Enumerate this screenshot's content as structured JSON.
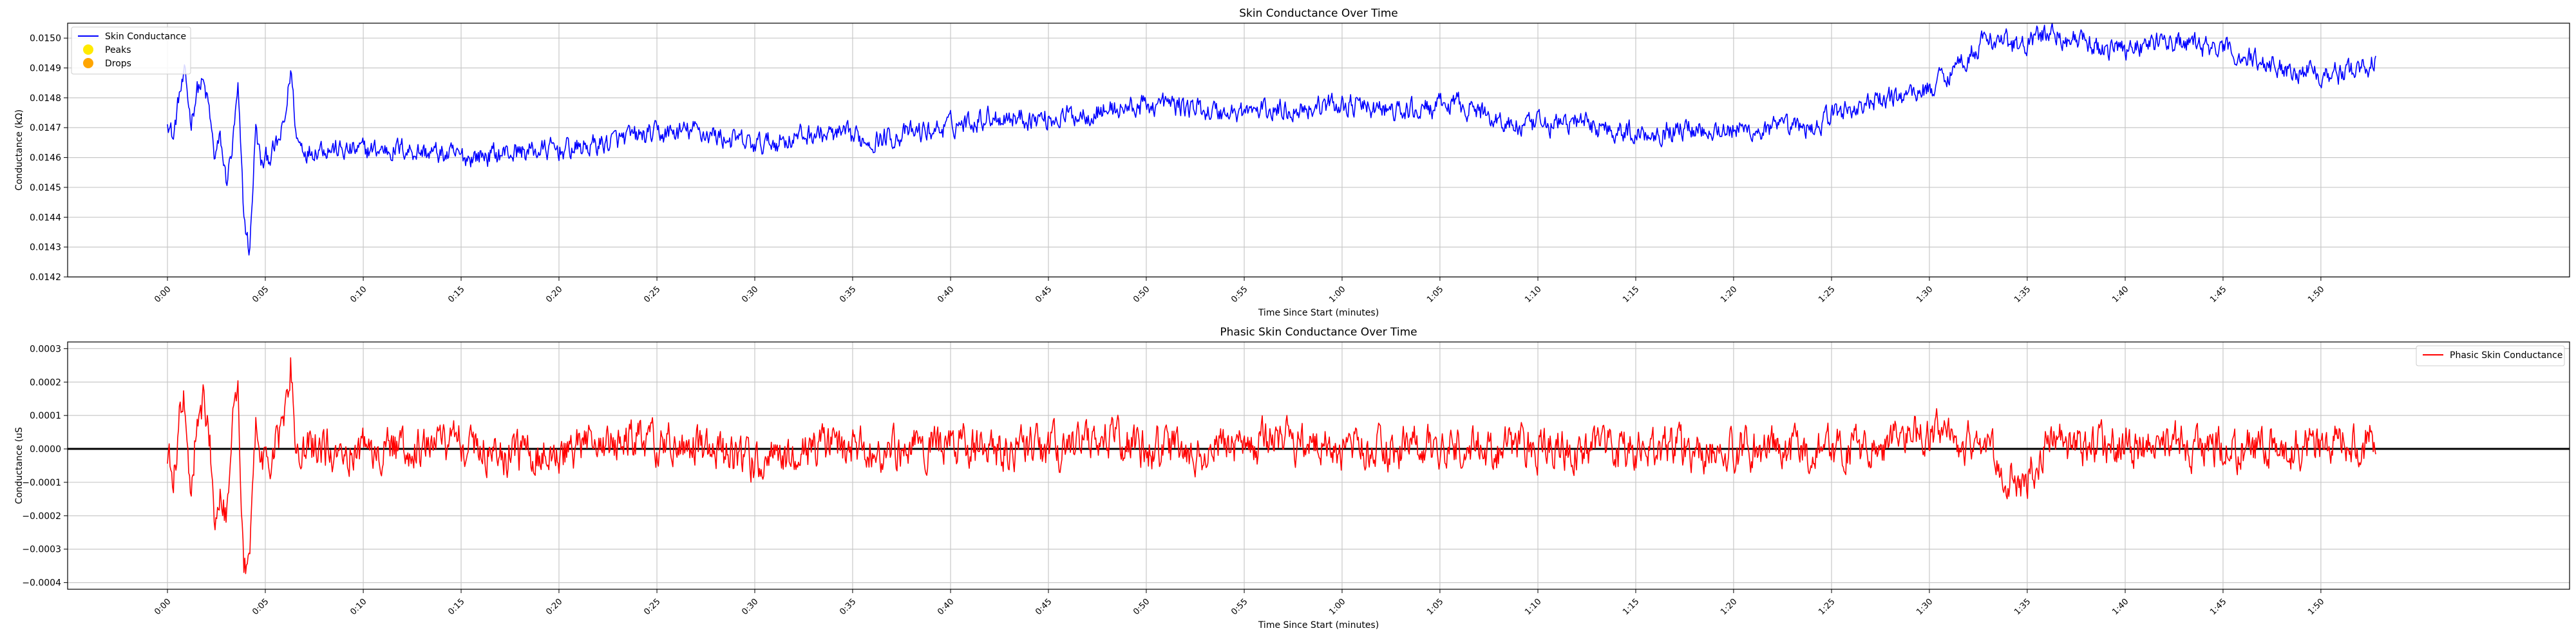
{
  "chart_data": [
    {
      "type": "line",
      "title": "Skin Conductance Over Time",
      "xlabel": "Time Since Start (minutes)",
      "ylabel": "Conductance (kΩ)",
      "xlim": [
        -0.085,
        2.045
      ],
      "ylim": [
        0.0142,
        0.01505
      ],
      "x_ticks": [
        0,
        0.0833,
        0.1667,
        0.25,
        0.3333,
        0.4167,
        0.5,
        0.5833,
        0.6667,
        0.75,
        0.8333,
        0.9167,
        1.0,
        1.0833,
        1.1667,
        1.25,
        1.3333,
        1.4167,
        1.5,
        1.5833,
        1.6667,
        1.75,
        1.8333
      ],
      "x_tick_labels": [
        "0:00",
        "0:05",
        "0:10",
        "0:15",
        "0:20",
        "0:25",
        "0:30",
        "0:35",
        "0:40",
        "0:45",
        "0:50",
        "0:55",
        "1:00",
        "1:05",
        "1:10",
        "1:15",
        "1:20",
        "1:25",
        "1:30",
        "1:35",
        "1:40",
        "1:45",
        "1:50"
      ],
      "y_ticks": [
        0.0142,
        0.0143,
        0.0144,
        0.0145,
        0.0146,
        0.0147,
        0.0148,
        0.0149,
        0.015
      ],
      "y_tick_labels": [
        "0.0142",
        "0.0143",
        "0.0144",
        "0.0145",
        "0.0146",
        "0.0147",
        "0.0148",
        "0.0149",
        "0.0150"
      ],
      "grid": true,
      "legend_position": "top-left",
      "legend": [
        {
          "label": "Skin Conductance",
          "kind": "line",
          "color": "#0000ff"
        },
        {
          "label": "Peaks",
          "kind": "marker",
          "color": "#ffea00"
        },
        {
          "label": "Drops",
          "kind": "marker",
          "color": "#ffa500"
        }
      ],
      "series": [
        {
          "name": "Skin Conductance",
          "color": "#0000ff",
          "noise": 3e-05,
          "x": [
            0,
            0.005,
            0.01,
            0.015,
            0.02,
            0.025,
            0.03,
            0.035,
            0.04,
            0.045,
            0.05,
            0.055,
            0.06,
            0.065,
            0.07,
            0.075,
            0.08,
            0.085,
            0.09,
            0.095,
            0.1,
            0.105,
            0.11,
            0.12,
            0.13,
            0.15,
            0.2,
            0.25,
            0.3,
            0.35,
            0.4,
            0.45,
            0.5,
            0.55,
            0.6,
            0.65,
            0.7,
            0.75,
            0.8,
            0.85,
            0.9,
            0.95,
            1.0,
            1.05,
            1.1,
            1.15,
            1.2,
            1.25,
            1.3,
            1.35,
            1.4,
            1.42,
            1.45,
            1.5,
            1.55,
            1.58,
            1.6,
            1.65,
            1.7,
            1.75,
            1.8,
            1.85,
            1.88
          ],
          "y": [
            0.01474,
            0.01466,
            0.01481,
            0.01487,
            0.01472,
            0.01483,
            0.01485,
            0.01477,
            0.0146,
            0.01466,
            0.01452,
            0.01462,
            0.01482,
            0.0144,
            0.01428,
            0.0147,
            0.01457,
            0.0146,
            0.01462,
            0.01465,
            0.01472,
            0.0149,
            0.01466,
            0.01462,
            0.01464,
            0.01462,
            0.01463,
            0.0146,
            0.01462,
            0.01463,
            0.01467,
            0.01469,
            0.01464,
            0.01468,
            0.01466,
            0.01469,
            0.01474,
            0.01473,
            0.01476,
            0.01478,
            0.01475,
            0.01476,
            0.01478,
            0.01475,
            0.01478,
            0.0147,
            0.01472,
            0.01468,
            0.0147,
            0.01469,
            0.0147,
            0.01475,
            0.01478,
            0.01483,
            0.015,
            0.01497,
            0.01502,
            0.01496,
            0.01499,
            0.01496,
            0.0149,
            0.01488,
            0.01492
          ]
        }
      ]
    },
    {
      "type": "line",
      "title": "Phasic Skin Conductance Over Time",
      "xlabel": "Time Since Start (minutes)",
      "ylabel": "Conductance (uS",
      "xlim": [
        -0.085,
        2.045
      ],
      "ylim": [
        -0.00042,
        0.00032
      ],
      "x_ticks": [
        0,
        0.0833,
        0.1667,
        0.25,
        0.3333,
        0.4167,
        0.5,
        0.5833,
        0.6667,
        0.75,
        0.8333,
        0.9167,
        1.0,
        1.0833,
        1.1667,
        1.25,
        1.3333,
        1.4167,
        1.5,
        1.5833,
        1.6667,
        1.75,
        1.8333
      ],
      "x_tick_labels": [
        "0:00",
        "0:05",
        "0:10",
        "0:15",
        "0:20",
        "0:25",
        "0:30",
        "0:35",
        "0:40",
        "0:45",
        "0:50",
        "0:55",
        "1:00",
        "1:05",
        "1:10",
        "1:15",
        "1:20",
        "1:25",
        "1:30",
        "1:35",
        "1:40",
        "1:45",
        "1:50"
      ],
      "y_ticks": [
        -0.0004,
        -0.0003,
        -0.0002,
        -0.0001,
        0,
        0.0001,
        0.0002,
        0.0003
      ],
      "y_tick_labels": [
        "−0.0004",
        "−0.0003",
        "−0.0002",
        "−0.0001",
        "0.0000",
        "0.0001",
        "0.0002",
        "0.0003"
      ],
      "grid": true,
      "zero_line": true,
      "legend_position": "top-right",
      "legend": [
        {
          "label": "Phasic Skin Conductance",
          "kind": "line",
          "color": "#ff0000"
        }
      ],
      "series": [
        {
          "name": "Phasic Skin Conductance",
          "color": "#ff0000",
          "noise": 5e-05,
          "x": [
            0,
            0.005,
            0.01,
            0.015,
            0.02,
            0.025,
            0.03,
            0.035,
            0.04,
            0.045,
            0.05,
            0.055,
            0.06,
            0.065,
            0.07,
            0.075,
            0.08,
            0.085,
            0.09,
            0.095,
            0.1,
            0.105,
            0.11,
            0.12,
            0.15,
            0.2,
            0.25,
            0.3,
            0.35,
            0.4,
            0.45,
            0.5,
            0.55,
            0.6,
            0.65,
            0.7,
            0.75,
            0.8,
            0.85,
            0.9,
            0.95,
            1.0,
            1.05,
            1.1,
            1.15,
            1.2,
            1.25,
            1.3,
            1.35,
            1.4,
            1.45,
            1.5,
            1.55,
            1.58,
            1.6,
            1.65,
            1.7,
            1.75,
            1.8,
            1.85,
            1.88
          ],
          "y": [
            0.0,
            -0.00012,
            0.0001,
            0.00015,
            -0.00018,
            0.00012,
            0.00015,
            8e-05,
            -0.00018,
            -0.0001,
            -0.0002,
            0.0001,
            0.00015,
            -0.00035,
            -0.00038,
            8e-05,
            -5e-05,
            -5e-05,
            0.0,
            3e-05,
            0.0001,
            0.00026,
            -2e-05,
            0.0,
            0.0,
            0.0,
            2e-05,
            -2e-05,
            0.0,
            2e-05,
            0.0,
            -5e-05,
            0.0,
            0.0,
            2e-05,
            0.0,
            0.0,
            2e-05,
            0.0,
            0.0,
            3e-05,
            0.0,
            0.0,
            0.0,
            0.0,
            0.0,
            0.0,
            0.0,
            0.0,
            0.0,
            0.0,
            5e-05,
            0.0,
            -0.00012,
            3e-05,
            0.0,
            2e-05,
            0.0,
            0.0,
            3e-05,
            2e-05
          ]
        }
      ]
    }
  ]
}
